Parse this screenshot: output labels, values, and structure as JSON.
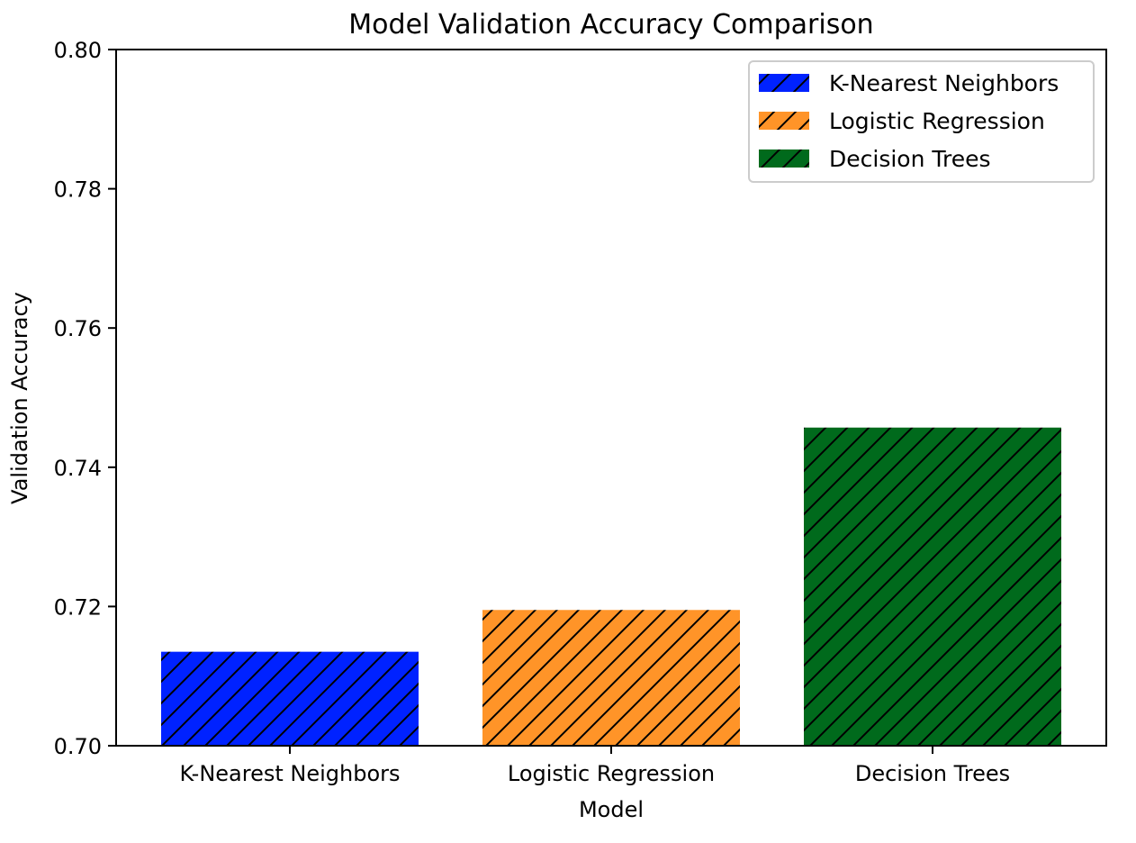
{
  "chart_data": {
    "type": "bar",
    "title": "Model Validation Accuracy Comparison",
    "xlabel": "Model",
    "ylabel": "Validation Accuracy",
    "categories": [
      "K-Nearest Neighbors",
      "Logistic Regression",
      "Decision Trees"
    ],
    "values": [
      0.7135,
      0.7195,
      0.7457
    ],
    "colors": [
      "#0022ff",
      "#ff9428",
      "#006a1c"
    ],
    "hatch": "diagonal-forward",
    "ylim": [
      0.7,
      0.8
    ],
    "yticks": [
      "0.70",
      "0.72",
      "0.74",
      "0.76",
      "0.78",
      "0.80"
    ],
    "grid": false,
    "legend": {
      "position": "top-right",
      "entries": [
        "K-Nearest Neighbors",
        "Logistic Regression",
        "Decision Trees"
      ]
    }
  }
}
